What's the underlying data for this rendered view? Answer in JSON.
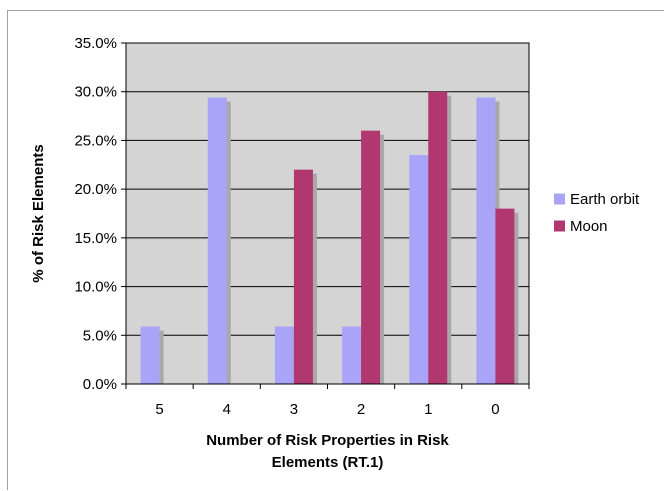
{
  "chart_data": {
    "type": "bar",
    "title": "",
    "xlabel_lines": [
      "Number of Risk Properties in Risk",
      "Elements  (RT.1)"
    ],
    "ylabel": "% of Risk Elements",
    "categories": [
      "5",
      "4",
      "3",
      "2",
      "1",
      "0"
    ],
    "ylim": [
      0,
      35
    ],
    "yticks": [
      "0.0%",
      "5.0%",
      "10.0%",
      "15.0%",
      "20.0%",
      "25.0%",
      "30.0%",
      "35.0%"
    ],
    "grid": true,
    "legend_position": "right",
    "series": [
      {
        "name": "Earth orbit",
        "color": "#a9a4f7",
        "values": [
          5.9,
          29.4,
          5.9,
          5.9,
          23.5,
          29.4
        ]
      },
      {
        "name": "Moon",
        "color": "#b0386f",
        "values": [
          0,
          0,
          22.0,
          26.0,
          30.0,
          18.0
        ]
      }
    ],
    "plot_background": "#d4d4d4",
    "shadow_color": "#a8a8a8"
  }
}
